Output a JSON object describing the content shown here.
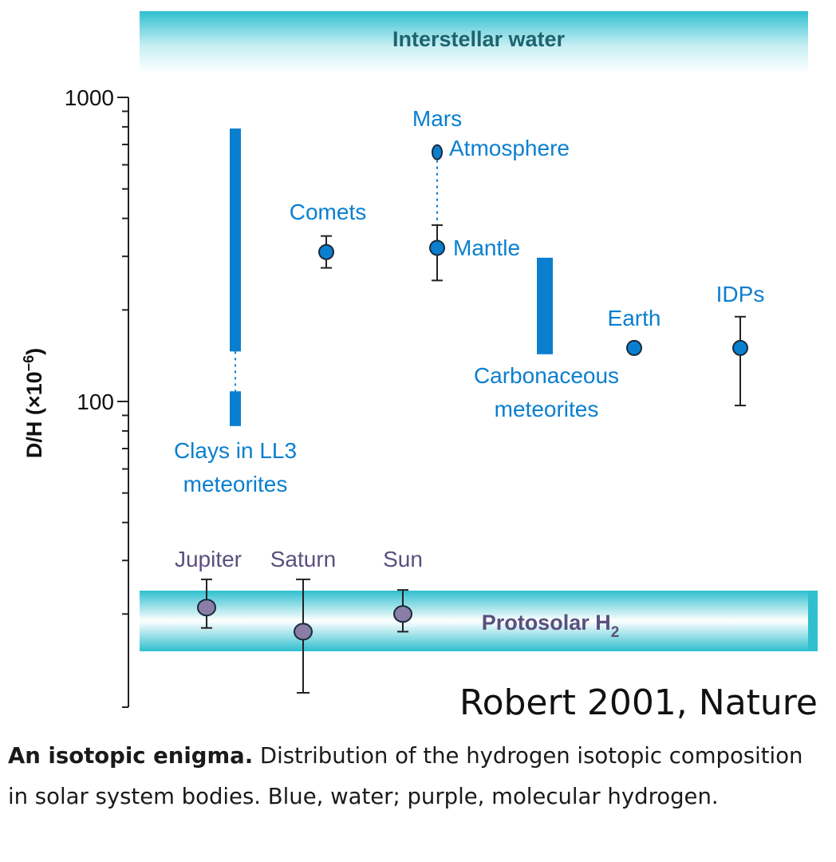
{
  "chart_data": {
    "type": "scatter",
    "title": "",
    "ylabel": "D/H (×10",
    "ylabel_exponent": "−6",
    "ylabel_close": ")",
    "y_scale": "log",
    "ylim": [
      16,
      1000
    ],
    "y_ticks": [
      {
        "value": 100,
        "label": "100"
      },
      {
        "value": 1000,
        "label": "1000"
      }
    ],
    "y_minor_ticks": [
      20,
      30,
      40,
      50,
      60,
      70,
      80,
      90,
      200,
      300,
      400,
      500,
      600,
      700,
      800,
      900
    ],
    "bands": [
      {
        "label": "Interstellar water",
        "position": "top"
      },
      {
        "label": "Protosolar H",
        "subscript": "2",
        "low": 18,
        "high": 27
      }
    ],
    "series": [
      {
        "name": "Blue, water",
        "color": "#0a7fcf",
        "points": [
          {
            "label": "Comets",
            "y": 310,
            "ylow": 275,
            "yhigh": 350
          },
          {
            "label_line1": "Mars",
            "label_line2": "Atmosphere",
            "y": 660
          },
          {
            "label": "Mantle",
            "y": 320,
            "ylow": 250,
            "yhigh": 380
          },
          {
            "label": "Earth",
            "y": 150
          },
          {
            "label": "IDPs",
            "y": 150,
            "ylow": 97,
            "yhigh": 190
          }
        ],
        "ranges": [
          {
            "label_line1": "Clays in LL3",
            "label_line2": "meteorites",
            "low": 83,
            "high": 790,
            "gap": [
              108,
              146
            ]
          },
          {
            "label_line1": "Carbonaceous",
            "label_line2": "meteorites",
            "low": 143,
            "high": 297
          }
        ]
      },
      {
        "name": "purple, molecular hydrogen",
        "color": "#8a7ea6",
        "points": [
          {
            "label": "Jupiter",
            "y": 21,
            "ylow": 18,
            "yhigh": 26
          },
          {
            "label": "Saturn",
            "y": 17.5,
            "ylow": 11.5,
            "yhigh": 26
          },
          {
            "label": "Sun",
            "y": 20,
            "ylow": 17.5,
            "yhigh": 24
          }
        ]
      }
    ],
    "annotation": "Robert 2001, Nature"
  },
  "caption": {
    "bold": "An isotopic enigma.",
    "text": " Distribution of the hydrogen isotopic composition in solar system bodies. Blue, water; purple, molecular hydrogen."
  },
  "colors": {
    "water": "#0a7fcf",
    "hydrogen": "#8a7ea6",
    "band": "#2fbfcf",
    "band_text_top": "#1c6470",
    "band_text_bottom": "#5b4f7e"
  }
}
